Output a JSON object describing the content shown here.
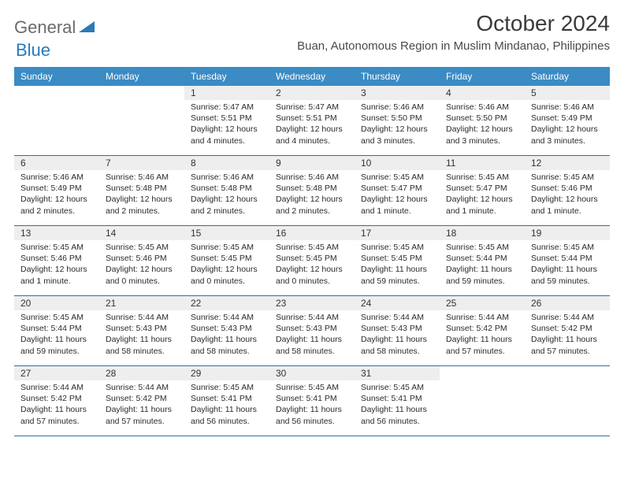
{
  "brand": {
    "part1": "General",
    "part2": "Blue"
  },
  "title": "October 2024",
  "location": "Buan, Autonomous Region in Muslim Mindanao, Philippines",
  "colors": {
    "header_bg": "#3b8bc4",
    "header_text": "#ffffff",
    "daynum_bg": "#eeeeee",
    "week_border": "#2f6fa3",
    "logo_gray": "#6b6b6b",
    "logo_blue": "#2a7ab8"
  },
  "day_names": [
    "Sunday",
    "Monday",
    "Tuesday",
    "Wednesday",
    "Thursday",
    "Friday",
    "Saturday"
  ],
  "weeks": [
    [
      {
        "n": "",
        "sr": "",
        "ss": "",
        "dl": ""
      },
      {
        "n": "",
        "sr": "",
        "ss": "",
        "dl": ""
      },
      {
        "n": "1",
        "sr": "Sunrise: 5:47 AM",
        "ss": "Sunset: 5:51 PM",
        "dl": "Daylight: 12 hours and 4 minutes."
      },
      {
        "n": "2",
        "sr": "Sunrise: 5:47 AM",
        "ss": "Sunset: 5:51 PM",
        "dl": "Daylight: 12 hours and 4 minutes."
      },
      {
        "n": "3",
        "sr": "Sunrise: 5:46 AM",
        "ss": "Sunset: 5:50 PM",
        "dl": "Daylight: 12 hours and 3 minutes."
      },
      {
        "n": "4",
        "sr": "Sunrise: 5:46 AM",
        "ss": "Sunset: 5:50 PM",
        "dl": "Daylight: 12 hours and 3 minutes."
      },
      {
        "n": "5",
        "sr": "Sunrise: 5:46 AM",
        "ss": "Sunset: 5:49 PM",
        "dl": "Daylight: 12 hours and 3 minutes."
      }
    ],
    [
      {
        "n": "6",
        "sr": "Sunrise: 5:46 AM",
        "ss": "Sunset: 5:49 PM",
        "dl": "Daylight: 12 hours and 2 minutes."
      },
      {
        "n": "7",
        "sr": "Sunrise: 5:46 AM",
        "ss": "Sunset: 5:48 PM",
        "dl": "Daylight: 12 hours and 2 minutes."
      },
      {
        "n": "8",
        "sr": "Sunrise: 5:46 AM",
        "ss": "Sunset: 5:48 PM",
        "dl": "Daylight: 12 hours and 2 minutes."
      },
      {
        "n": "9",
        "sr": "Sunrise: 5:46 AM",
        "ss": "Sunset: 5:48 PM",
        "dl": "Daylight: 12 hours and 2 minutes."
      },
      {
        "n": "10",
        "sr": "Sunrise: 5:45 AM",
        "ss": "Sunset: 5:47 PM",
        "dl": "Daylight: 12 hours and 1 minute."
      },
      {
        "n": "11",
        "sr": "Sunrise: 5:45 AM",
        "ss": "Sunset: 5:47 PM",
        "dl": "Daylight: 12 hours and 1 minute."
      },
      {
        "n": "12",
        "sr": "Sunrise: 5:45 AM",
        "ss": "Sunset: 5:46 PM",
        "dl": "Daylight: 12 hours and 1 minute."
      }
    ],
    [
      {
        "n": "13",
        "sr": "Sunrise: 5:45 AM",
        "ss": "Sunset: 5:46 PM",
        "dl": "Daylight: 12 hours and 1 minute."
      },
      {
        "n": "14",
        "sr": "Sunrise: 5:45 AM",
        "ss": "Sunset: 5:46 PM",
        "dl": "Daylight: 12 hours and 0 minutes."
      },
      {
        "n": "15",
        "sr": "Sunrise: 5:45 AM",
        "ss": "Sunset: 5:45 PM",
        "dl": "Daylight: 12 hours and 0 minutes."
      },
      {
        "n": "16",
        "sr": "Sunrise: 5:45 AM",
        "ss": "Sunset: 5:45 PM",
        "dl": "Daylight: 12 hours and 0 minutes."
      },
      {
        "n": "17",
        "sr": "Sunrise: 5:45 AM",
        "ss": "Sunset: 5:45 PM",
        "dl": "Daylight: 11 hours and 59 minutes."
      },
      {
        "n": "18",
        "sr": "Sunrise: 5:45 AM",
        "ss": "Sunset: 5:44 PM",
        "dl": "Daylight: 11 hours and 59 minutes."
      },
      {
        "n": "19",
        "sr": "Sunrise: 5:45 AM",
        "ss": "Sunset: 5:44 PM",
        "dl": "Daylight: 11 hours and 59 minutes."
      }
    ],
    [
      {
        "n": "20",
        "sr": "Sunrise: 5:45 AM",
        "ss": "Sunset: 5:44 PM",
        "dl": "Daylight: 11 hours and 59 minutes."
      },
      {
        "n": "21",
        "sr": "Sunrise: 5:44 AM",
        "ss": "Sunset: 5:43 PM",
        "dl": "Daylight: 11 hours and 58 minutes."
      },
      {
        "n": "22",
        "sr": "Sunrise: 5:44 AM",
        "ss": "Sunset: 5:43 PM",
        "dl": "Daylight: 11 hours and 58 minutes."
      },
      {
        "n": "23",
        "sr": "Sunrise: 5:44 AM",
        "ss": "Sunset: 5:43 PM",
        "dl": "Daylight: 11 hours and 58 minutes."
      },
      {
        "n": "24",
        "sr": "Sunrise: 5:44 AM",
        "ss": "Sunset: 5:43 PM",
        "dl": "Daylight: 11 hours and 58 minutes."
      },
      {
        "n": "25",
        "sr": "Sunrise: 5:44 AM",
        "ss": "Sunset: 5:42 PM",
        "dl": "Daylight: 11 hours and 57 minutes."
      },
      {
        "n": "26",
        "sr": "Sunrise: 5:44 AM",
        "ss": "Sunset: 5:42 PM",
        "dl": "Daylight: 11 hours and 57 minutes."
      }
    ],
    [
      {
        "n": "27",
        "sr": "Sunrise: 5:44 AM",
        "ss": "Sunset: 5:42 PM",
        "dl": "Daylight: 11 hours and 57 minutes."
      },
      {
        "n": "28",
        "sr": "Sunrise: 5:44 AM",
        "ss": "Sunset: 5:42 PM",
        "dl": "Daylight: 11 hours and 57 minutes."
      },
      {
        "n": "29",
        "sr": "Sunrise: 5:45 AM",
        "ss": "Sunset: 5:41 PM",
        "dl": "Daylight: 11 hours and 56 minutes."
      },
      {
        "n": "30",
        "sr": "Sunrise: 5:45 AM",
        "ss": "Sunset: 5:41 PM",
        "dl": "Daylight: 11 hours and 56 minutes."
      },
      {
        "n": "31",
        "sr": "Sunrise: 5:45 AM",
        "ss": "Sunset: 5:41 PM",
        "dl": "Daylight: 11 hours and 56 minutes."
      },
      {
        "n": "",
        "sr": "",
        "ss": "",
        "dl": ""
      },
      {
        "n": "",
        "sr": "",
        "ss": "",
        "dl": ""
      }
    ]
  ]
}
